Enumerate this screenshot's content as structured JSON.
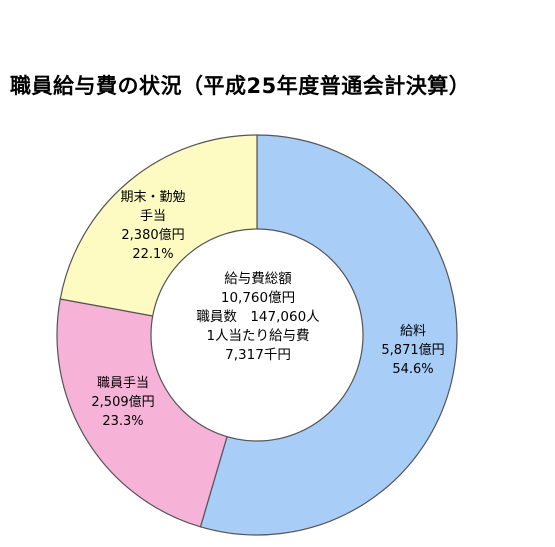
{
  "title": "職員給与費の状況（平成25年度普通会計決算）",
  "center": {
    "total_label": "給与費総額",
    "total_value": "10,760億円",
    "staff": "職員数　147,060人",
    "per_person_label": "1人当たり給与費",
    "per_person_value": "7,317千円"
  },
  "colors": {
    "salary": "#a8cdf7",
    "allowance": "#f7b2d8",
    "bonus": "#fdfbc2",
    "outline": "#555555"
  },
  "chart_data": {
    "type": "pie",
    "donut": true,
    "title": "職員給与費の状況（平成25年度普通会計決算）",
    "slices": [
      {
        "label": "給料",
        "value": 5871,
        "value_text": "5,871億円",
        "percent": 54.6,
        "percent_text": "54.6%"
      },
      {
        "label": "職員手当",
        "value": 2509,
        "value_text": "2,509億円",
        "percent": 23.3,
        "percent_text": "23.3%"
      },
      {
        "label": "期末・勤勉手当",
        "label_lines": [
          "期末・勤勉",
          "手当"
        ],
        "value": 2380,
        "value_text": "2,380億円",
        "percent": 22.1,
        "percent_text": "22.1%"
      }
    ]
  }
}
